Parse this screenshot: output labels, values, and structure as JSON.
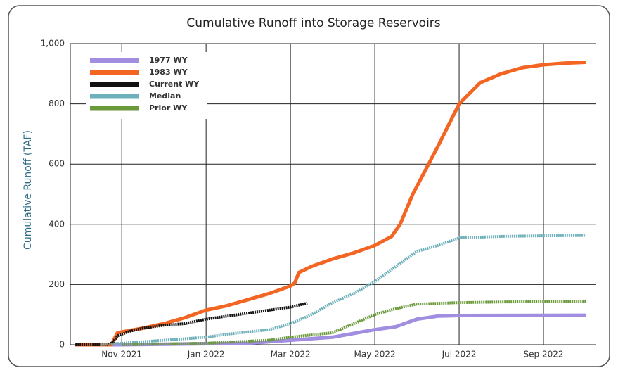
{
  "chart_data": {
    "type": "line",
    "title": "Cumulative Runoff into Storage Reservoirs",
    "y_label": "Cumulative Runoff (TAF)",
    "xlim": [
      -0.22,
      12.25
    ],
    "xticks": [
      {
        "value": 1,
        "label": "Nov 2021"
      },
      {
        "value": 3,
        "label": "Jan 2022"
      },
      {
        "value": 5,
        "label": "Mar 2022"
      },
      {
        "value": 7,
        "label": "May 2022"
      },
      {
        "value": 9,
        "label": "Jul 2022"
      },
      {
        "value": 11,
        "label": "Sep 2022"
      }
    ],
    "ylim": [
      0,
      1000
    ],
    "yticks": [
      0,
      200,
      400,
      600,
      800,
      {
        "value": 1000,
        "label": "1,000"
      }
    ],
    "grid": true,
    "legend": "upper left",
    "series": [
      {
        "name": "1977 WY",
        "color": "#a28ee0",
        "dash": false,
        "x": [
          -0.1,
          1,
          4,
          5,
          6,
          7,
          7.5,
          8,
          8.5,
          9,
          12
        ],
        "values": [
          0,
          0,
          5,
          15,
          25,
          50,
          60,
          85,
          95,
          97,
          98
        ]
      },
      {
        "name": "1983 WY",
        "color": "#f26522",
        "dash": false,
        "x": [
          -0.1,
          0.75,
          0.9,
          1.5,
          2,
          2.5,
          3,
          3.5,
          4,
          4.5,
          5,
          5.1,
          5.2,
          5.5,
          6,
          6.5,
          7,
          7.4,
          7.6,
          7.9,
          8.2,
          8.5,
          9,
          9.5,
          10,
          10.5,
          11,
          11.5,
          12
        ],
        "values": [
          0,
          0,
          40,
          55,
          70,
          90,
          115,
          130,
          150,
          170,
          195,
          205,
          240,
          260,
          285,
          305,
          330,
          360,
          400,
          500,
          580,
          660,
          800,
          870,
          900,
          920,
          930,
          935,
          938
        ]
      },
      {
        "name": "Current WY",
        "color": "#111111",
        "dash": true,
        "x": [
          -0.1,
          0.7,
          0.8,
          0.9,
          1.2,
          1.5,
          2,
          2.5,
          3,
          3.5,
          4,
          4.5,
          5,
          5.4
        ],
        "values": [
          0,
          0,
          10,
          30,
          45,
          55,
          65,
          70,
          85,
          95,
          105,
          115,
          125,
          138
        ]
      },
      {
        "name": "Median",
        "color": "#6fb1bb",
        "dash": true,
        "x": [
          0.5,
          1,
          2,
          3,
          3.5,
          4.5,
          5,
          5.5,
          6,
          6.5,
          7,
          7.5,
          8,
          8.5,
          9,
          10,
          11,
          12
        ],
        "values": [
          0,
          5,
          15,
          25,
          35,
          50,
          70,
          100,
          140,
          170,
          210,
          260,
          310,
          330,
          355,
          360,
          362,
          363
        ]
      },
      {
        "name": "Prior WY",
        "color": "#6a9a3a",
        "dash": true,
        "x": [
          1,
          3,
          4.5,
          5,
          6,
          6.5,
          7,
          7.5,
          8,
          9,
          10,
          11,
          12
        ],
        "values": [
          0,
          5,
          15,
          25,
          40,
          70,
          100,
          120,
          135,
          140,
          142,
          143,
          145
        ]
      }
    ]
  }
}
